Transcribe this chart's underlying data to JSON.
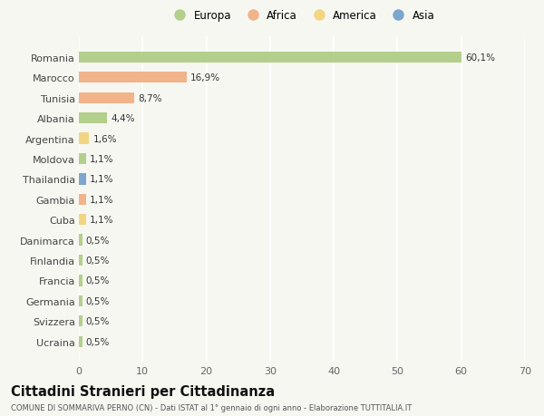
{
  "countries": [
    "Romania",
    "Marocco",
    "Tunisia",
    "Albania",
    "Argentina",
    "Moldova",
    "Thailandia",
    "Gambia",
    "Cuba",
    "Danimarca",
    "Finlandia",
    "Francia",
    "Germania",
    "Svizzera",
    "Ucraina"
  ],
  "values": [
    60.1,
    16.9,
    8.7,
    4.4,
    1.6,
    1.1,
    1.1,
    1.1,
    1.1,
    0.5,
    0.5,
    0.5,
    0.5,
    0.5,
    0.5
  ],
  "labels": [
    "60,1%",
    "16,9%",
    "8,7%",
    "4,4%",
    "1,6%",
    "1,1%",
    "1,1%",
    "1,1%",
    "1,1%",
    "0,5%",
    "0,5%",
    "0,5%",
    "0,5%",
    "0,5%",
    "0,5%"
  ],
  "colors": [
    "#a8c87a",
    "#f0a878",
    "#f0a878",
    "#a8c87a",
    "#f0d070",
    "#a8c87a",
    "#6898c8",
    "#f0a878",
    "#f0d070",
    "#a8c87a",
    "#a8c87a",
    "#a8c87a",
    "#a8c87a",
    "#a8c87a",
    "#a8c87a"
  ],
  "legend_labels": [
    "Europa",
    "Africa",
    "America",
    "Asia"
  ],
  "legend_colors": [
    "#a8c87a",
    "#f0a878",
    "#f0d070",
    "#6898c8"
  ],
  "xlim": [
    0,
    70
  ],
  "xticks": [
    0,
    10,
    20,
    30,
    40,
    50,
    60,
    70
  ],
  "title": "Cittadini Stranieri per Cittadinanza",
  "subtitle": "COMUNE DI SOMMARIVA PERNO (CN) - Dati ISTAT al 1° gennaio di ogni anno - Elaborazione TUTTITALIA.IT",
  "bg_color": "#f7f7f2",
  "bar_alpha": 0.85
}
